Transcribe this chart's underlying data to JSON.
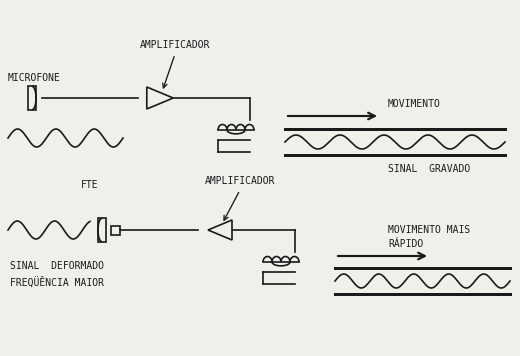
{
  "bg_color": "#f0f0eb",
  "line_color": "#1a1a1a",
  "labels": {
    "microfone": "MICROFONE",
    "amplificador1": "AMPLIFICADOR",
    "movimento": "MOVIMENTO",
    "sinal_gravado": "SINAL  GRAVADO",
    "fte": "FTE",
    "amplificador2": "AMPLIFICADOR",
    "movimento_mais": "MOVIMENTO MAIS",
    "rapido": "RÁPIDO",
    "sinal_deformado": "SINAL  DEFORMADO",
    "frequencia_maior": "FREQÜÊNCIA MAIOR"
  },
  "font_size": 7,
  "lw": 1.2
}
